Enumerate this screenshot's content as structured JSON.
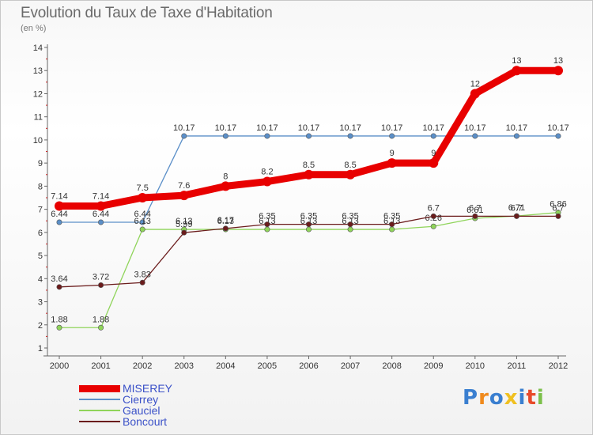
{
  "header": {
    "title": "Evolution du Taux de Taxe d'Habitation",
    "subtitle": "(en %)"
  },
  "brand": {
    "text": "Proxiti"
  },
  "chart_data": {
    "type": "line",
    "title": "Evolution du Taux de Taxe d'Habitation",
    "subtitle": "(en %)",
    "xlabel": "",
    "ylabel": "",
    "categories": [
      "2000",
      "2001",
      "2002",
      "2003",
      "2004",
      "2005",
      "2006",
      "2007",
      "2008",
      "2009",
      "2010",
      "2011",
      "2012"
    ],
    "ylim": [
      1,
      14
    ],
    "yticks": [
      "1",
      "2",
      "3",
      "4",
      "5",
      "6",
      "7",
      "8",
      "9",
      "10",
      "11",
      "12",
      "13",
      "14"
    ],
    "grid": false,
    "legend_position": "bottom-left",
    "series": [
      {
        "name": "MISEREY",
        "color": "#e80000",
        "emphasis": true,
        "values": [
          7.14,
          7.14,
          7.5,
          7.6,
          8,
          8.2,
          8.5,
          8.5,
          9,
          9,
          12,
          13,
          13
        ],
        "labels": [
          "7.14",
          "7.14",
          "7.5",
          "7.6",
          "8",
          "8.2",
          "8.5",
          "8.5",
          "9",
          "9",
          "12",
          "13",
          "13"
        ]
      },
      {
        "name": "Cierrey",
        "color": "#5b8fc8",
        "emphasis": false,
        "values": [
          6.44,
          6.44,
          6.44,
          10.17,
          10.17,
          10.17,
          10.17,
          10.17,
          10.17,
          10.17,
          10.17,
          10.17,
          10.17
        ],
        "labels": [
          "6.44",
          "6.44",
          "6.44",
          "10.17",
          "10.17",
          "10.17",
          "10.17",
          "10.17",
          "10.17",
          "10.17",
          "10.17",
          "10.17",
          "10.17"
        ]
      },
      {
        "name": "Gauciel",
        "color": "#8fd45a",
        "emphasis": false,
        "values": [
          1.88,
          1.88,
          6.13,
          6.13,
          6.13,
          6.13,
          6.13,
          6.13,
          6.13,
          6.26,
          6.61,
          6.71,
          6.86
        ],
        "labels": [
          "1.88",
          "1.88",
          "6.13",
          "6.13",
          "6.13",
          "6.13",
          "6.13",
          "6.13",
          "6.13",
          "6.26",
          "6.61",
          "6.71",
          "6.86"
        ]
      },
      {
        "name": "Boncourt",
        "color": "#6b1c1c",
        "emphasis": false,
        "values": [
          3.64,
          3.72,
          3.83,
          5.99,
          6.17,
          6.35,
          6.35,
          6.35,
          6.35,
          6.7,
          6.7,
          6.7,
          6.7
        ],
        "labels": [
          "3.64",
          "3.72",
          "3.83",
          "5.99",
          "6.17",
          "6.35",
          "6.35",
          "6.35",
          "6.35",
          "6.7",
          "6.7",
          "6.7",
          "6.7"
        ]
      }
    ]
  }
}
